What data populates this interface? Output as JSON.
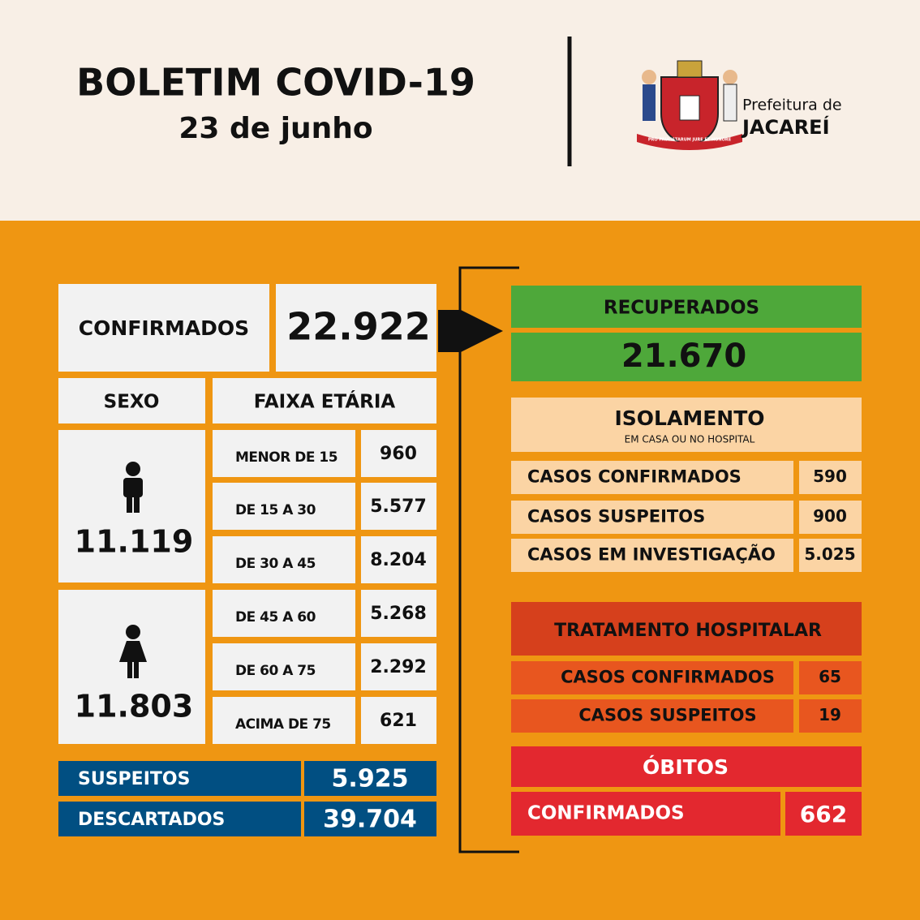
{
  "header": {
    "title": "BOLETIM COVID-19",
    "date": "23 de junho",
    "org_line1": "Prefeitura de",
    "org_line2": "JACAREÍ",
    "motto": "PRO PAULISTARUM JURE ET HONORE"
  },
  "confirmed": {
    "label": "CONFIRMADOS",
    "value": "22.922"
  },
  "sex": {
    "header": "SEXO",
    "male": "11.119",
    "female": "11.803"
  },
  "age": {
    "header": "FAIXA ETÁRIA",
    "rows": [
      [
        "MENOR DE 15",
        "960"
      ],
      [
        "DE 15 A 30",
        "5.577"
      ],
      [
        "DE 30 A 45",
        "8.204"
      ],
      [
        "DE 45 A 60",
        "5.268"
      ],
      [
        "DE 60 A 75",
        "2.292"
      ],
      [
        "ACIMA DE 75",
        "621"
      ]
    ]
  },
  "others": {
    "rows": [
      [
        "SUSPEITOS",
        "5.925"
      ],
      [
        "DESCARTADOS",
        "39.704"
      ]
    ]
  },
  "recovered": {
    "label": "RECUPERADOS",
    "value": "21.670"
  },
  "isolation": {
    "title": "ISOLAMENTO",
    "subtitle": "EM CASA OU NO HOSPITAL",
    "rows": [
      [
        "CASOS CONFIRMADOS",
        "590"
      ],
      [
        "CASOS SUSPEITOS",
        "900"
      ],
      [
        "CASOS EM INVESTIGAÇÃO",
        "5.025"
      ]
    ]
  },
  "hospital": {
    "title": "TRATAMENTO HOSPITALAR",
    "rows": [
      [
        "CASOS CONFIRMADOS",
        "65"
      ],
      [
        "CASOS SUSPEITOS",
        "19"
      ]
    ]
  },
  "deaths": {
    "title": "ÓBITOS",
    "label": "CONFIRMADOS",
    "value": "662"
  }
}
